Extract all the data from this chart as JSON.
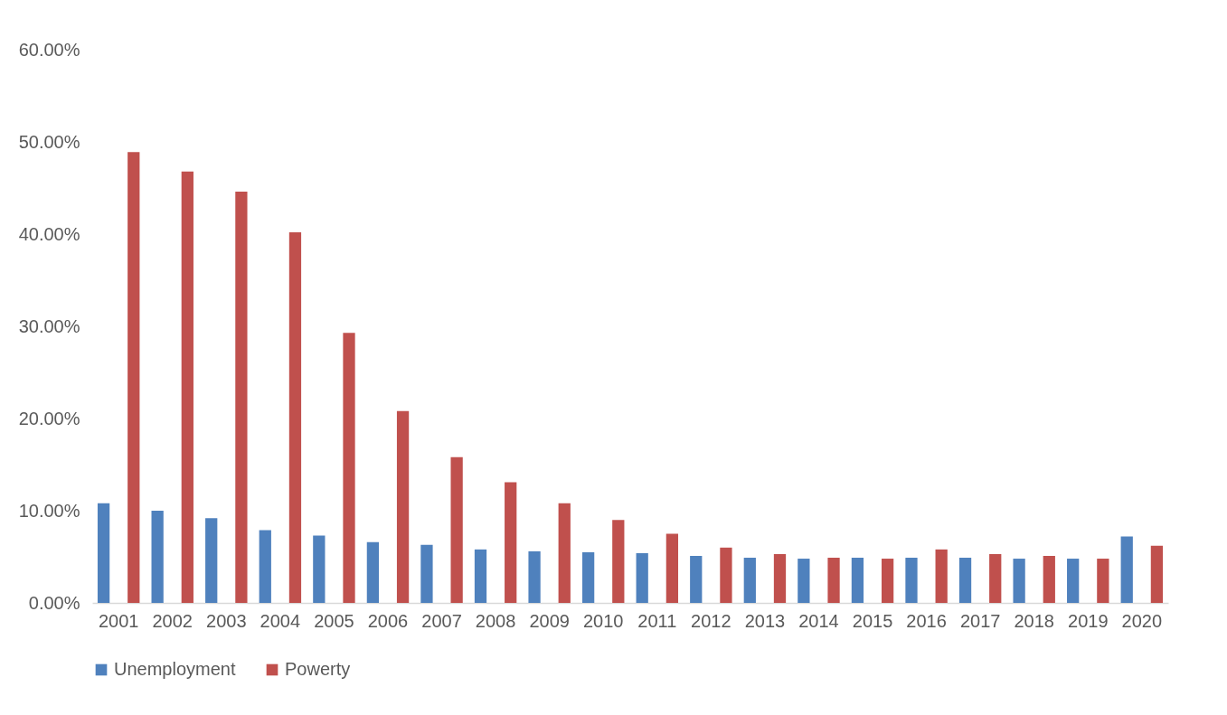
{
  "chart_data": {
    "type": "bar",
    "categories": [
      "2001",
      "2002",
      "2003",
      "2004",
      "2005",
      "2006",
      "2007",
      "2008",
      "2009",
      "2010",
      "2011",
      "2012",
      "2013",
      "2014",
      "2015",
      "2016",
      "2017",
      "2018",
      "2019",
      "2020"
    ],
    "series": [
      {
        "name": "Unemployment",
        "color": "#4f81bd",
        "values": [
          10.8,
          10.0,
          9.2,
          7.9,
          7.3,
          6.6,
          6.3,
          5.8,
          5.6,
          5.5,
          5.4,
          5.1,
          4.9,
          4.8,
          4.9,
          4.9,
          4.9,
          4.8,
          4.8,
          7.2
        ]
      },
      {
        "name": "Powerty",
        "color": "#c0504d",
        "values": [
          48.9,
          46.8,
          44.6,
          40.2,
          29.3,
          20.8,
          15.8,
          13.1,
          10.8,
          9.0,
          7.5,
          6.0,
          5.3,
          4.9,
          4.8,
          5.8,
          5.3,
          5.1,
          4.8,
          6.2
        ]
      }
    ],
    "ylim": [
      0,
      60
    ],
    "yticks": [
      {
        "value": 0,
        "label": "0.00%"
      },
      {
        "value": 10,
        "label": "10.00%"
      },
      {
        "value": 20,
        "label": "20.00%"
      },
      {
        "value": 30,
        "label": "30.00%"
      },
      {
        "value": 40,
        "label": "40.00%"
      },
      {
        "value": 50,
        "label": "50.00%"
      },
      {
        "value": 60,
        "label": "60.00%"
      }
    ],
    "grid": false,
    "legend": "bottom"
  }
}
